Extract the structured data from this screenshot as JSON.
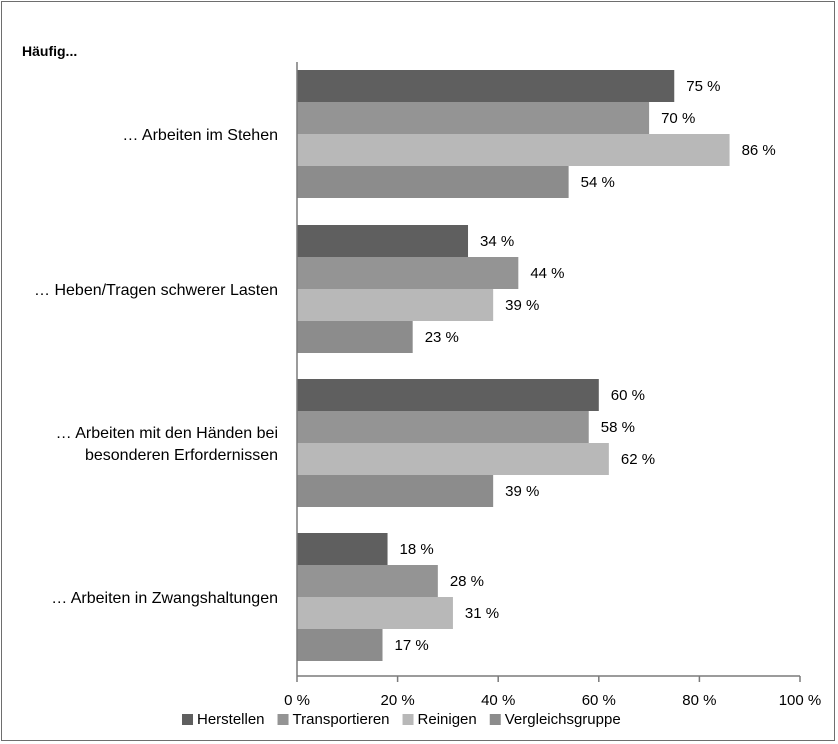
{
  "chart_data": {
    "type": "bar",
    "orientation": "horizontal",
    "title": "Häufig...",
    "categories": [
      [
        "… Arbeiten im Stehen"
      ],
      [
        "… Heben/Tragen schwerer Lasten"
      ],
      [
        "… Arbeiten mit den Händen bei",
        "besonderen Erfordernissen"
      ],
      [
        "… Arbeiten in Zwangshaltungen"
      ]
    ],
    "series": [
      {
        "name": "Herstellen",
        "color": "#5f5f5f",
        "values": [
          75,
          34,
          60,
          18
        ]
      },
      {
        "name": "Transportieren",
        "color": "#949494",
        "values": [
          70,
          44,
          58,
          28
        ]
      },
      {
        "name": "Reinigen",
        "color": "#b8b8b8",
        "values": [
          86,
          39,
          62,
          31
        ]
      },
      {
        "name": "Vergleichsgruppe",
        "color": "#8c8c8c",
        "values": [
          54,
          23,
          39,
          17
        ]
      }
    ],
    "value_suffix": " %",
    "xlim": [
      0,
      100
    ],
    "xticks": [
      0,
      20,
      40,
      60,
      80,
      100
    ],
    "xtick_labels": [
      "0 %",
      "20 %",
      "40 %",
      "60 %",
      "80 %",
      "100 %"
    ],
    "grid": false,
    "legend_position": "bottom"
  }
}
